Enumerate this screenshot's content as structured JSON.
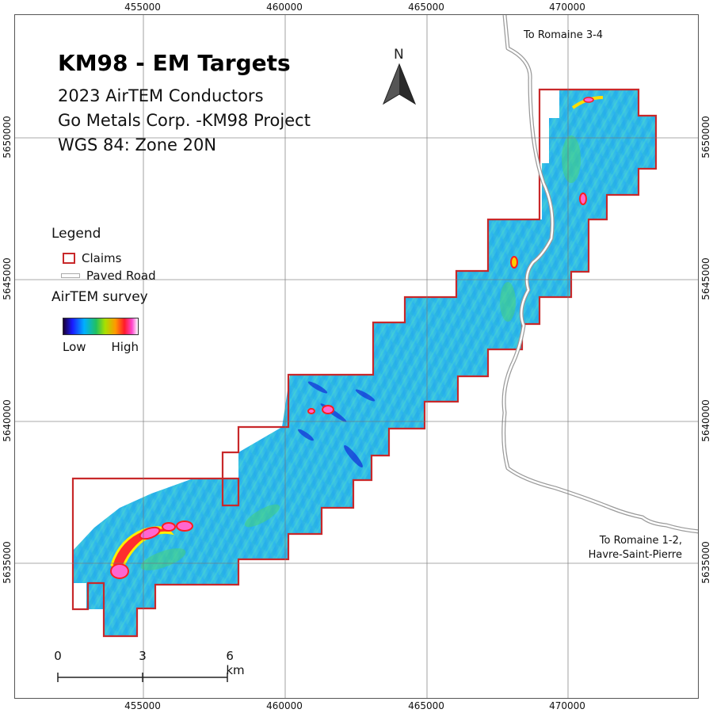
{
  "title": "KM98 - EM Targets",
  "subtitle_lines": [
    "2023 AirTEM Conductors",
    "Go Metals Corp. -KM98 Project",
    "WGS 84: Zone 20N"
  ],
  "north_arrow": {
    "label": "N",
    "icon": "north-arrow-icon"
  },
  "legend": {
    "title": "Legend",
    "claims_label": "Claims",
    "road_label": "Paved Road",
    "survey_title": "AirTEM survey",
    "ramp_low": "Low",
    "ramp_high": "High"
  },
  "colors": {
    "claims": "#c8282a",
    "survey_base": "#29b7f0",
    "road": "#ffffff",
    "road_casing": "#9a9a9a"
  },
  "grid": {
    "eastings": [
      "455000",
      "460000",
      "465000",
      "470000"
    ],
    "northings": [
      "5635000",
      "5640000",
      "5645000",
      "5650000"
    ]
  },
  "scale_bar": {
    "labels": [
      "0",
      "3",
      "6 km"
    ]
  },
  "road_labels": {
    "north": "To Romaine 3-4",
    "south_line1": "To Romaine 1-2,",
    "south_line2": "Havre-Saint-Pierre"
  }
}
